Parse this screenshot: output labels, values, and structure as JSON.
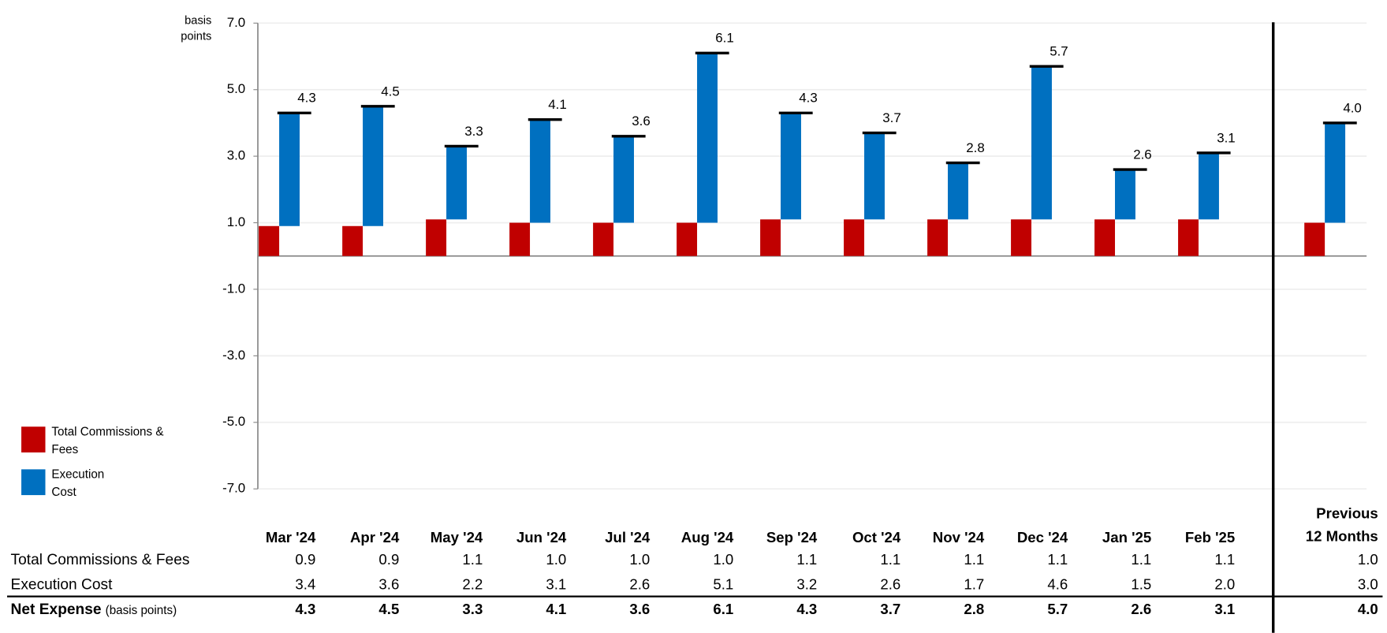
{
  "chart_data": {
    "type": "bar",
    "y_label": "basis points",
    "categories": [
      "Mar '24",
      "Apr '24",
      "May '24",
      "Jun '24",
      "Jul '24",
      "Aug '24",
      "Sep '24",
      "Oct '24",
      "Nov '24",
      "Dec '24",
      "Jan '25",
      "Feb '25",
      "Previous 12 Months"
    ],
    "ylim": [
      -7,
      7
    ],
    "yticks": [
      {
        "value": -7,
        "label": "-7.0"
      },
      {
        "value": -5,
        "label": "-5.0"
      },
      {
        "value": -3,
        "label": "-3.0"
      },
      {
        "value": -1,
        "label": "-1.0"
      },
      {
        "value": 1,
        "label": "1.0"
      },
      {
        "value": 3,
        "label": "3.0"
      },
      {
        "value": 5,
        "label": "5.0"
      },
      {
        "value": 7,
        "label": "7.0"
      }
    ],
    "grid": true,
    "legend": "left",
    "series": [
      {
        "name": "Total Commissions & Fees",
        "color": "#c00000",
        "values": [
          0.9,
          0.9,
          1.1,
          1.0,
          1.0,
          1.0,
          1.1,
          1.1,
          1.1,
          1.1,
          1.1,
          1.1,
          1.0
        ],
        "value_labels": [
          "0.9",
          "0.9",
          "1.1",
          "1.0",
          "1.0",
          "1.0",
          "1.1",
          "1.1",
          "1.1",
          "1.1",
          "1.1",
          "1.1",
          "1.0"
        ]
      },
      {
        "name": "Execution Cost",
        "color": "#0070c0",
        "values": [
          3.4,
          3.6,
          2.2,
          3.1,
          2.6,
          5.1,
          3.2,
          2.6,
          1.7,
          4.6,
          1.5,
          2.0,
          3.0
        ],
        "value_labels": [
          "3.4",
          "3.6",
          "2.2",
          "3.1",
          "2.6",
          "5.1",
          "3.2",
          "2.6",
          "1.7",
          "4.6",
          "1.5",
          "2.0",
          "3.0"
        ]
      }
    ],
    "total": {
      "name": "Net Expense",
      "unit": "(basis points)",
      "color": "#000000",
      "values": [
        4.3,
        4.5,
        3.3,
        4.1,
        3.6,
        6.1,
        4.3,
        3.7,
        2.8,
        5.7,
        2.6,
        3.1,
        4.0
      ],
      "value_labels": [
        "4.3",
        "4.5",
        "3.3",
        "4.1",
        "3.6",
        "6.1",
        "4.3",
        "3.7",
        "2.8",
        "5.7",
        "2.6",
        "3.1",
        "4.0"
      ]
    }
  }
}
